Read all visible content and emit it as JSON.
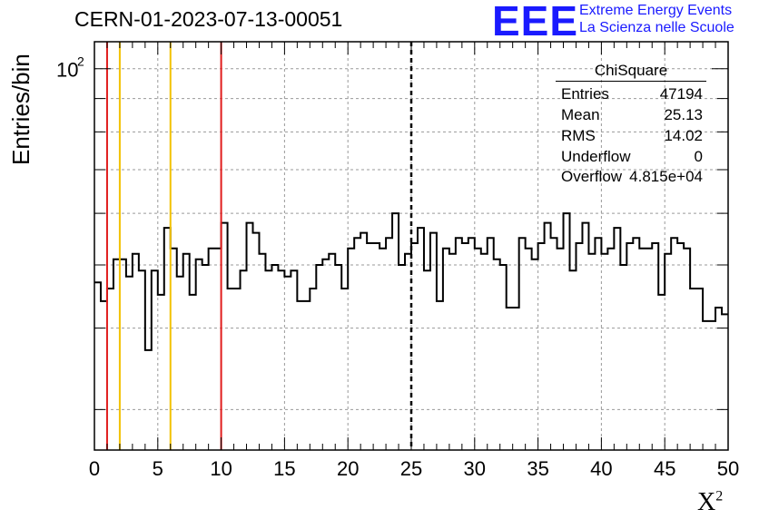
{
  "header": {
    "title": "CERN-01-2023-07-13-00051"
  },
  "logo": {
    "letters": "EEE",
    "line1": "Extreme Energy Events",
    "line2": "La Scienza nelle Scuole"
  },
  "stats": {
    "title": "ChiSquare",
    "rows": [
      {
        "key": "Entries",
        "value": "47194"
      },
      {
        "key": "Mean",
        "value": "25.13"
      },
      {
        "key": "RMS",
        "value": "14.02"
      },
      {
        "key": "Underflow",
        "value": "0"
      },
      {
        "key": "Overflow",
        "value": "4.815e+04"
      }
    ]
  },
  "chart_data": {
    "type": "histogram",
    "title": "CERN-01-2023-07-13-00051",
    "xlabel": "X",
    "xlabel_superscript": "2",
    "ylabel": "Entries/bin",
    "xlim": [
      0,
      50
    ],
    "ylim": [
      26,
      110
    ],
    "ylog": true,
    "grid": true,
    "xticks": [
      0,
      5,
      10,
      15,
      20,
      25,
      30,
      35,
      40,
      45,
      50
    ],
    "ytick_label": "10",
    "ytick_label_exp": "2",
    "ytick_label_value": 100,
    "bin_width": 0.5,
    "values": [
      47,
      44,
      46,
      51,
      51,
      48,
      52,
      49,
      37,
      49,
      45,
      57,
      53,
      48,
      52,
      45,
      51,
      50,
      53,
      53,
      58,
      46,
      46,
      49,
      58,
      56,
      52,
      49,
      50,
      49,
      48,
      49,
      44,
      44,
      46,
      50,
      51,
      52,
      50,
      46,
      53,
      55,
      56,
      54,
      54,
      53,
      55,
      60,
      50,
      52,
      54,
      57,
      49,
      56,
      44,
      53,
      52,
      55,
      54,
      55,
      53,
      52,
      55,
      51,
      50,
      43,
      43,
      55,
      53,
      51,
      54,
      58,
      55,
      53,
      60,
      49,
      54,
      58,
      52,
      55,
      52,
      53,
      57,
      50,
      54,
      55,
      53,
      53,
      54,
      45,
      52,
      55,
      54,
      53,
      46,
      46,
      41,
      41,
      43,
      42
    ],
    "vertical_lines": [
      {
        "x": 1,
        "color": "#e11d1d",
        "style": "solid"
      },
      {
        "x": 2,
        "color": "#f2c200",
        "style": "solid"
      },
      {
        "x": 6,
        "color": "#f2c200",
        "style": "solid"
      },
      {
        "x": 10,
        "color": "#e11d1d",
        "style": "solid"
      },
      {
        "x": 25,
        "color": "#000000",
        "style": "dashed"
      }
    ]
  }
}
